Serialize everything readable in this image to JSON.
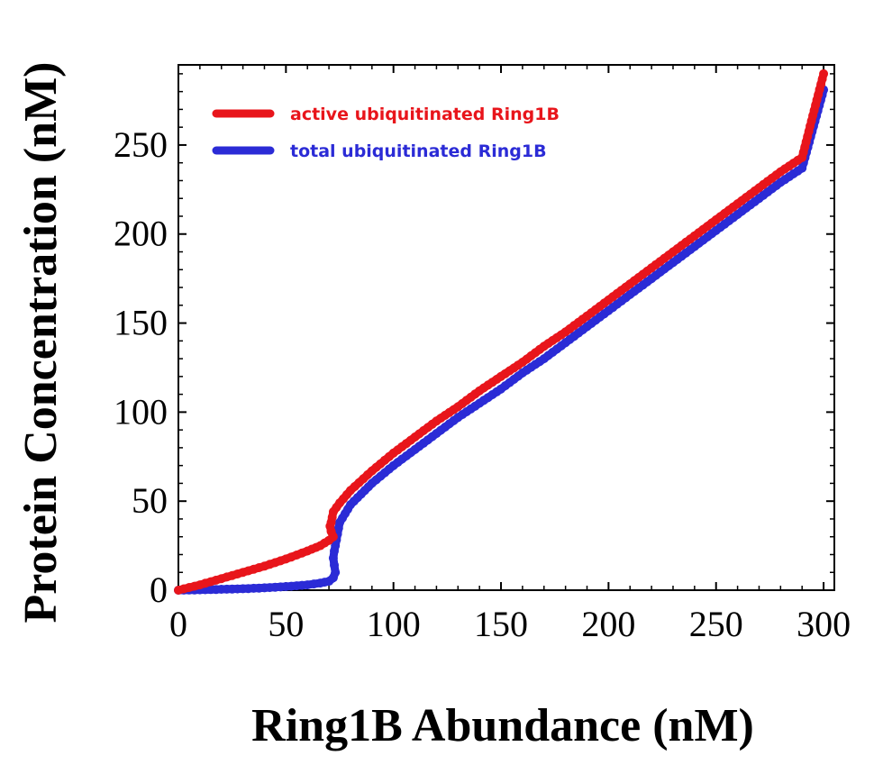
{
  "chart_data": {
    "type": "scatter",
    "xlabel": "Ring1B Abundance (nM)",
    "ylabel": "Protein Concentration (nM)",
    "xlim": [
      0,
      305
    ],
    "ylim": [
      0,
      295
    ],
    "xticks": [
      0,
      50,
      100,
      150,
      200,
      250,
      300
    ],
    "yticks": [
      0,
      50,
      100,
      150,
      200,
      250
    ],
    "x_tick_labels": [
      "0",
      "50",
      "100",
      "150",
      "200",
      "250",
      "300"
    ],
    "y_tick_labels": [
      "0",
      "50",
      "100",
      "150",
      "200",
      "250"
    ],
    "grid": false,
    "legend_position": "top-left",
    "series": [
      {
        "name": "active ubiquitinated Ring1B",
        "color": "#e8151b",
        "points": [
          [
            0,
            0
          ],
          [
            10,
            3
          ],
          [
            20,
            6.5
          ],
          [
            30,
            10
          ],
          [
            40,
            13.5
          ],
          [
            50,
            17.5
          ],
          [
            60,
            22
          ],
          [
            66,
            25
          ],
          [
            70,
            28
          ],
          [
            72,
            30
          ],
          [
            71,
            33
          ],
          [
            70.5,
            36
          ],
          [
            71,
            38
          ],
          [
            72,
            44
          ],
          [
            75,
            49
          ],
          [
            80,
            56
          ],
          [
            90,
            67
          ],
          [
            100,
            77
          ],
          [
            110,
            86
          ],
          [
            120,
            95
          ],
          [
            130,
            103
          ],
          [
            140,
            112
          ],
          [
            150,
            120
          ],
          [
            160,
            128
          ],
          [
            170,
            137
          ],
          [
            180,
            145
          ],
          [
            190,
            154
          ],
          [
            200,
            163
          ],
          [
            210,
            172
          ],
          [
            220,
            181
          ],
          [
            230,
            190
          ],
          [
            240,
            199
          ],
          [
            250,
            208
          ],
          [
            260,
            217
          ],
          [
            270,
            226
          ],
          [
            280,
            235
          ],
          [
            290,
            243
          ],
          [
            300,
            290
          ]
        ]
      },
      {
        "name": "total ubiquitinated Ring1B",
        "color": "#2b2bd6",
        "points": [
          [
            0,
            0
          ],
          [
            10,
            0.2
          ],
          [
            20,
            0.5
          ],
          [
            30,
            0.8
          ],
          [
            40,
            1.3
          ],
          [
            50,
            2
          ],
          [
            60,
            3
          ],
          [
            66,
            4
          ],
          [
            70,
            5
          ],
          [
            72,
            7
          ],
          [
            73,
            10
          ],
          [
            72.5,
            14
          ],
          [
            72,
            18
          ],
          [
            72.5,
            22
          ],
          [
            73,
            25
          ],
          [
            75,
            38
          ],
          [
            80,
            48
          ],
          [
            90,
            60
          ],
          [
            100,
            70
          ],
          [
            110,
            79
          ],
          [
            120,
            88
          ],
          [
            130,
            97
          ],
          [
            140,
            105
          ],
          [
            150,
            113
          ],
          [
            160,
            122
          ],
          [
            170,
            130
          ],
          [
            180,
            139
          ],
          [
            190,
            148
          ],
          [
            200,
            157
          ],
          [
            210,
            166
          ],
          [
            220,
            175
          ],
          [
            230,
            184
          ],
          [
            240,
            193
          ],
          [
            250,
            202
          ],
          [
            260,
            211
          ],
          [
            270,
            220
          ],
          [
            280,
            229
          ],
          [
            290,
            237
          ],
          [
            300,
            281
          ]
        ]
      }
    ]
  },
  "colors": {
    "active": "#e8151b",
    "total": "#2b2bd6",
    "axis": "#000000"
  }
}
